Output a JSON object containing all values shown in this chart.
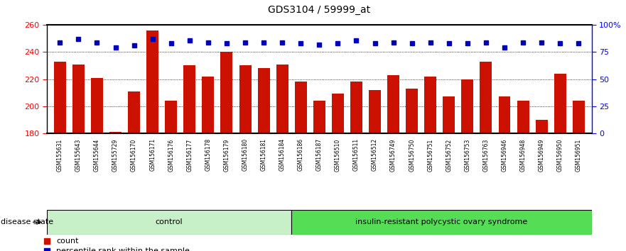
{
  "title": "GDS3104 / 59999_at",
  "samples": [
    "GSM155631",
    "GSM155643",
    "GSM155644",
    "GSM155729",
    "GSM156170",
    "GSM156171",
    "GSM156176",
    "GSM156177",
    "GSM156178",
    "GSM156179",
    "GSM156180",
    "GSM156181",
    "GSM156184",
    "GSM156186",
    "GSM156187",
    "GSM156510",
    "GSM156511",
    "GSM156512",
    "GSM156749",
    "GSM156750",
    "GSM156751",
    "GSM156752",
    "GSM156753",
    "GSM156763",
    "GSM156946",
    "GSM156948",
    "GSM156949",
    "GSM156950",
    "GSM156951"
  ],
  "counts": [
    233,
    231,
    221,
    181,
    211,
    256,
    204,
    230,
    222,
    240,
    230,
    228,
    231,
    218,
    204,
    209,
    218,
    212,
    223,
    213,
    222,
    207,
    220,
    233,
    207,
    204,
    190,
    224,
    204
  ],
  "percentile_ranks": [
    84,
    87,
    84,
    79,
    81,
    87,
    83,
    86,
    84,
    83,
    84,
    84,
    84,
    83,
    82,
    83,
    86,
    83,
    84,
    83,
    84,
    83,
    83,
    84,
    79,
    84,
    84,
    83,
    83
  ],
  "group_labels": [
    "control",
    "insulin-resistant polycystic ovary syndrome"
  ],
  "group_sizes": [
    13,
    16
  ],
  "group_colors": [
    "#c8f0c8",
    "#55dd55"
  ],
  "ylim_left": [
    180,
    260
  ],
  "ylim_right": [
    0,
    100
  ],
  "yticks_left": [
    180,
    200,
    220,
    240,
    260
  ],
  "yticks_right": [
    0,
    25,
    50,
    75,
    100
  ],
  "bar_color": "#CC1100",
  "dot_color": "#0000BB",
  "plot_bg_color": "#ffffff",
  "fig_bg_color": "#ffffff"
}
